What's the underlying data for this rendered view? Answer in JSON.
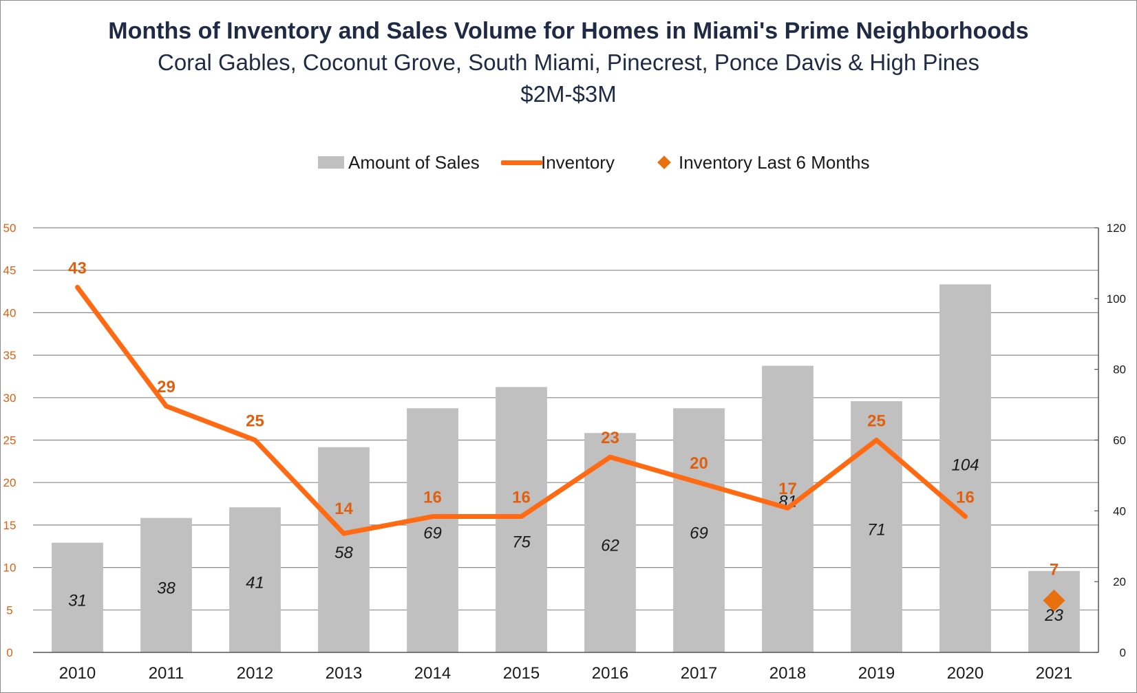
{
  "chart_data": {
    "type": "bar",
    "title": "Months of Inventory and Sales Volume for Homes in Miami's Prime Neighborhoods",
    "subtitle": "Coral Gables, Coconut Grove, South Miami, Pinecrest, Ponce Davis & High Pines",
    "subtitle2": "$2M-$3M",
    "categories": [
      "2010",
      "2011",
      "2012",
      "2013",
      "2014",
      "2015",
      "2016",
      "2017",
      "2018",
      "2019",
      "2020",
      "2021"
    ],
    "series": [
      {
        "name": "Amount of Sales",
        "type": "bar",
        "axis": "right",
        "values": [
          31,
          38,
          41,
          58,
          69,
          75,
          62,
          69,
          81,
          71,
          104,
          23
        ]
      },
      {
        "name": "Inventory",
        "type": "line",
        "axis": "left",
        "values": [
          43,
          29,
          25,
          14,
          16,
          16,
          23,
          20,
          17,
          25,
          16,
          null
        ]
      },
      {
        "name": "Inventory Last 6 Months",
        "type": "scatter",
        "axis": "left",
        "values": [
          null,
          null,
          null,
          null,
          null,
          null,
          null,
          null,
          null,
          null,
          null,
          7
        ]
      }
    ],
    "left_axis": {
      "min": 0,
      "max": 50,
      "ticks": [
        0,
        5,
        10,
        15,
        20,
        25,
        30,
        35,
        40,
        45,
        50
      ]
    },
    "right_axis": {
      "min": 0,
      "max": 120,
      "ticks": [
        0,
        20,
        40,
        60,
        80,
        100,
        120
      ]
    },
    "grid": true,
    "legend_position": "top",
    "colors": {
      "bars": "#c0c0c0",
      "line": "#ff6a13",
      "marker": "#e8700f",
      "label_orange": "#e06010",
      "axis_left_text": "#e06010"
    }
  }
}
